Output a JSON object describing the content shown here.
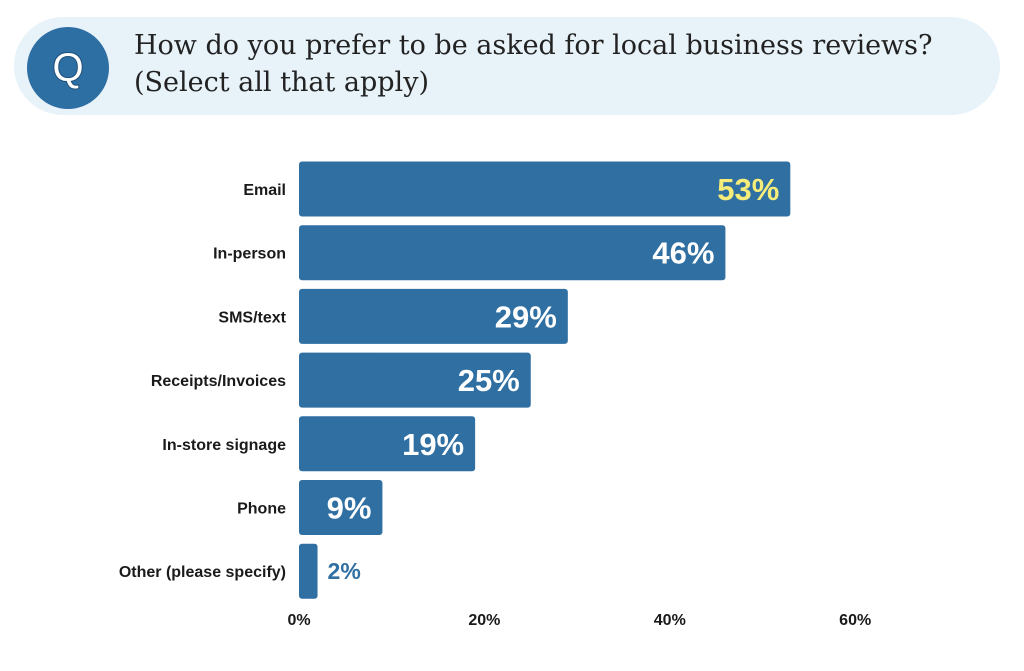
{
  "question": {
    "icon": "question-q-icon",
    "badge_letter": "Q",
    "text": "How do you prefer to be asked for local business reviews? (Select all that apply)"
  },
  "colors": {
    "bar": "#2f6fa2",
    "label_on_bar": "#ffffff",
    "highlight_label": "#f6ec7a",
    "label_outside": "#2f6fa2",
    "category_text": "#1a1a1a",
    "banner": "#e7f2f9",
    "badge": "#2d6ea3"
  },
  "chart_data": {
    "type": "bar",
    "orientation": "horizontal",
    "categories": [
      "Email",
      "In-person",
      "SMS/text",
      "Receipts/Invoices",
      "In-store signage",
      "Phone",
      "Other (please specify)"
    ],
    "values": [
      53,
      46,
      29,
      25,
      19,
      9,
      2
    ],
    "value_labels": [
      "53%",
      "46%",
      "29%",
      "25%",
      "19%",
      "9%",
      "2%"
    ],
    "highlighted_index": 0,
    "x_ticks": [
      0,
      20,
      40,
      60
    ],
    "x_tick_labels": [
      "0%",
      "20%",
      "40%",
      "60%"
    ],
    "xlim": [
      0,
      60
    ],
    "grid": false,
    "legend": "none"
  }
}
